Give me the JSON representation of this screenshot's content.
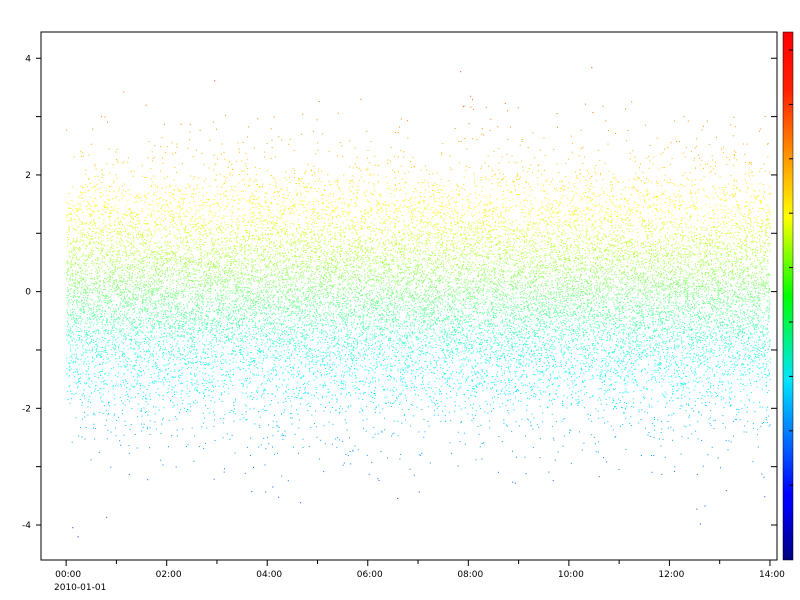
{
  "chart_data": {
    "type": "scatter",
    "title": "",
    "xlabel": "",
    "ylabel": "",
    "x_axis": {
      "kind": "time",
      "range": [
        "2009-12-31 23:30",
        "2010-01-01 14:08"
      ],
      "tick_labels": [
        "00:00",
        "02:00",
        "04:00",
        "06:00",
        "08:00",
        "10:00",
        "12:00",
        "14:00"
      ],
      "date_label": "2010-01-01"
    },
    "y_axis": {
      "range": [
        -4.6,
        4.45
      ],
      "tick_labels": [
        "4",
        "2",
        "0",
        "-2",
        "-4"
      ],
      "tick_values": [
        4,
        2,
        0,
        -2,
        -4
      ]
    },
    "series": [
      {
        "x_range": [
          "2010-01-01 00:00",
          "2010-01-01 14:00"
        ],
        "y_distribution": {
          "type": "normal",
          "mean": 0,
          "std": 1
        },
        "y_observed_range": [
          -4.2,
          4.05
        ],
        "color_by": "y"
      }
    ],
    "colorbar": {
      "colormap": "jet",
      "range": [
        -6,
        6
      ],
      "tick_labels_shown": false
    },
    "grid": false,
    "legend": "none"
  }
}
